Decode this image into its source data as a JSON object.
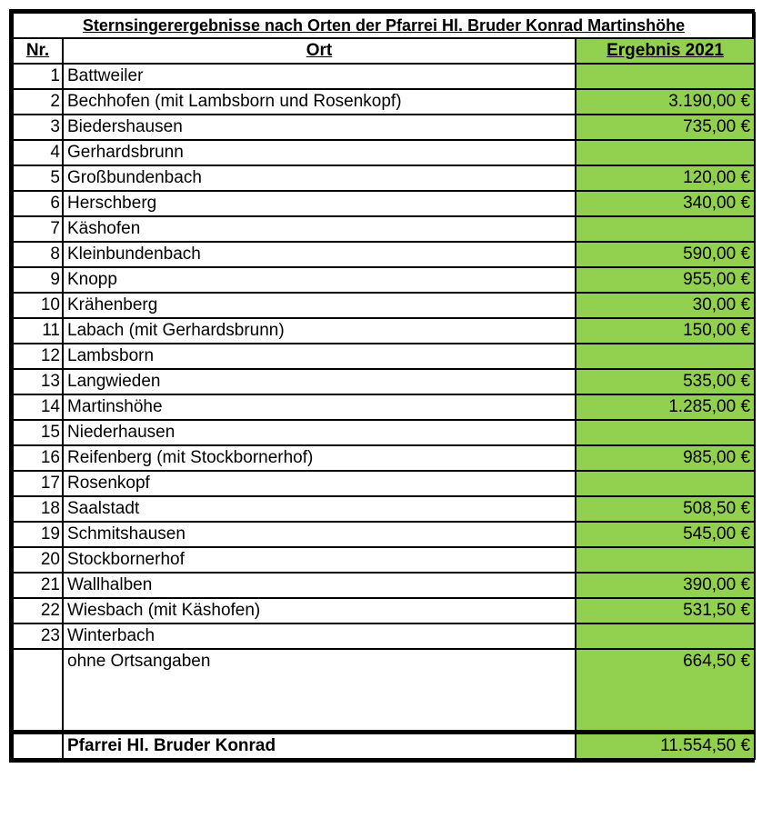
{
  "title": "Sternsingerergebnisse nach Orten der Pfarrei Hl. Bruder Konrad Martinshöhe",
  "header": {
    "nr": "Nr.",
    "ort": "Ort",
    "ergebnis": "Ergebnis 2021"
  },
  "rows": [
    {
      "nr": 1,
      "ort": "Battweiler",
      "ergebnis": null
    },
    {
      "nr": 2,
      "ort": "Bechhofen (mit Lambsborn und Rosenkopf)",
      "ergebnis": "3.190,00 €"
    },
    {
      "nr": 3,
      "ort": "Biedershausen",
      "ergebnis": "735,00 €"
    },
    {
      "nr": 4,
      "ort": "Gerhardsbrunn",
      "ergebnis": null
    },
    {
      "nr": 5,
      "ort": "Großbundenbach",
      "ergebnis": "120,00 €"
    },
    {
      "nr": 6,
      "ort": "Herschberg",
      "ergebnis": "340,00 €"
    },
    {
      "nr": 7,
      "ort": "Käshofen",
      "ergebnis": null
    },
    {
      "nr": 8,
      "ort": "Kleinbundenbach",
      "ergebnis": "590,00 €"
    },
    {
      "nr": 9,
      "ort": "Knopp",
      "ergebnis": "955,00 €"
    },
    {
      "nr": 10,
      "ort": "Krähenberg",
      "ergebnis": "30,00 €"
    },
    {
      "nr": 11,
      "ort": "Labach (mit Gerhardsbrunn)",
      "ergebnis": "150,00 €"
    },
    {
      "nr": 12,
      "ort": "Lambsborn",
      "ergebnis": null
    },
    {
      "nr": 13,
      "ort": "Langwieden",
      "ergebnis": "535,00 €"
    },
    {
      "nr": 14,
      "ort": "Martinshöhe",
      "ergebnis": "1.285,00 €"
    },
    {
      "nr": 15,
      "ort": "Niederhausen",
      "ergebnis": null
    },
    {
      "nr": 16,
      "ort": "Reifenberg (mit Stockbornerhof)",
      "ergebnis": "985,00 €"
    },
    {
      "nr": 17,
      "ort": "Rosenkopf",
      "ergebnis": null
    },
    {
      "nr": 18,
      "ort": "Saalstadt",
      "ergebnis": "508,50 €"
    },
    {
      "nr": 19,
      "ort": "Schmitshausen",
      "ergebnis": "545,00 €"
    },
    {
      "nr": 20,
      "ort": "Stockbornerhof",
      "ergebnis": null
    },
    {
      "nr": 21,
      "ort": "Wallhalben",
      "ergebnis": "390,00 €"
    },
    {
      "nr": 22,
      "ort": "Wiesbach (mit Käshofen)",
      "ergebnis": "531,50 €"
    },
    {
      "nr": 23,
      "ort": "Winterbach",
      "ergebnis": null
    }
  ],
  "no_location": {
    "ort": "ohne Ortsangaben",
    "ergebnis": "664,50 €"
  },
  "total": {
    "ort": "Pfarrei Hl. Bruder Konrad",
    "ergebnis": "11.554,50 €"
  }
}
